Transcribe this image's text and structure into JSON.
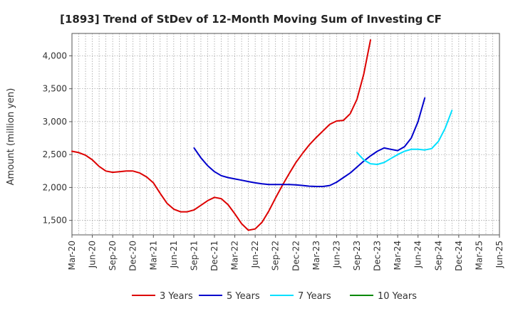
{
  "chart_data": {
    "type": "line",
    "title": "[1893]  Trend of StDev of 12-Month Moving Sum of Investing CF",
    "xlabel": "",
    "ylabel": "Amount (million yen)",
    "x_ticks": [
      "Mar-20",
      "Jun-20",
      "Sep-20",
      "Dec-20",
      "Mar-21",
      "Jun-21",
      "Sep-21",
      "Dec-21",
      "Mar-22",
      "Jun-22",
      "Sep-22",
      "Dec-22",
      "Mar-23",
      "Jun-23",
      "Sep-23",
      "Dec-23",
      "Mar-24",
      "Jun-24",
      "Sep-24",
      "Dec-24",
      "Mar-25",
      "Jun-25"
    ],
    "y_ticks": [
      1500,
      2000,
      2500,
      3000,
      3500,
      4000
    ],
    "y_tick_labels": [
      "1,500",
      "2,000",
      "2,500",
      "3,000",
      "3,500",
      "4,000"
    ],
    "ylim": [
      1280,
      4340
    ],
    "grid": true,
    "legend_position": "bottom",
    "series": [
      {
        "name": "3 Years",
        "color": "#dd0000",
        "start_index": 0,
        "values": [
          2550,
          2530,
          2490,
          2420,
          2320,
          2250,
          2230,
          2240,
          2250,
          2250,
          2220,
          2160,
          2070,
          1910,
          1760,
          1670,
          1630,
          1630,
          1660,
          1730,
          1800,
          1850,
          1830,
          1740,
          1600,
          1450,
          1350,
          1370,
          1470,
          1640,
          1840,
          2030,
          2210,
          2380,
          2520,
          2650,
          2760,
          2860,
          2960,
          3010,
          3020,
          3120,
          3340,
          3720,
          4240
        ]
      },
      {
        "name": "5 Years",
        "color": "#0000cc",
        "start_index": 18,
        "values": [
          2600,
          2450,
          2330,
          2240,
          2180,
          2150,
          2130,
          2110,
          2090,
          2070,
          2055,
          2045,
          2045,
          2045,
          2045,
          2040,
          2030,
          2020,
          2015,
          2015,
          2030,
          2080,
          2150,
          2220,
          2310,
          2400,
          2480,
          2550,
          2600,
          2580,
          2560,
          2620,
          2750,
          3000,
          3360
        ]
      },
      {
        "name": "7 Years",
        "color": "#00e0ff",
        "start_index": 42,
        "values": [
          2530,
          2420,
          2360,
          2350,
          2380,
          2440,
          2500,
          2550,
          2580,
          2580,
          2570,
          2590,
          2700,
          2900,
          3170
        ]
      },
      {
        "name": "10 Years",
        "color": "#008800",
        "start_index": 0,
        "values": []
      }
    ]
  }
}
